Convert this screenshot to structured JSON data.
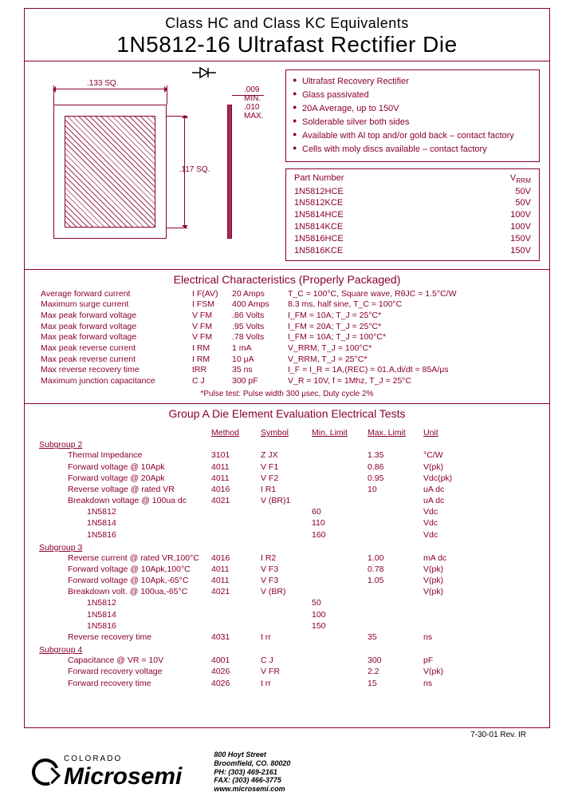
{
  "header": {
    "class_line": "Class HC and Class KC Equivalents",
    "title": "1N5812-16 Ultrafast Rectifier Die"
  },
  "dimensions": {
    "width": ".133 SQ.",
    "inner": ".117 SQ.",
    "thickness_min": ".009 MIN.",
    "thickness_max": ".010 MAX."
  },
  "features": [
    "Ultrafast Recovery Rectifier",
    "Glass passivated",
    "20A Average, up to 150V",
    "Solderable silver both sides",
    "Available with Al top and/or gold back – contact factory",
    "Cells with moly discs available – contact factory"
  ],
  "part_table": {
    "head_pn": "Part Number",
    "head_v": "V RRM",
    "rows": [
      {
        "pn": "1N5812HCE",
        "v": "50V"
      },
      {
        "pn": "1N5812KCE",
        "v": "50V"
      },
      {
        "pn": "1N5814HCE",
        "v": "100V"
      },
      {
        "pn": "1N5814KCE",
        "v": "100V"
      },
      {
        "pn": "1N5816HCE",
        "v": "150V"
      },
      {
        "pn": "1N5816KCE",
        "v": "150V"
      }
    ]
  },
  "elec_title": "Electrical Characteristics (Properly Packaged)",
  "elec_rows": [
    {
      "name": "Average forward current",
      "sym": "I F(AV)",
      "val": "20 Amps",
      "cond": "T_C = 100°C, Square wave, RθJC = 1.5°C/W"
    },
    {
      "name": "Maximum surge current",
      "sym": "I FSM",
      "val": "400 Amps",
      "cond": "8.3 ms, half sine, T_C = 100°C"
    },
    {
      "name": "Max peak forward voltage",
      "sym": "V FM",
      "val": ".86 Volts",
      "cond": "I_FM = 10A; T_J = 25°C*"
    },
    {
      "name": "Max peak forward voltage",
      "sym": "V FM",
      "val": ".95 Volts",
      "cond": "I_FM = 20A; T_J = 25°C*"
    },
    {
      "name": "Max peak forward voltage",
      "sym": "V FM",
      "val": ".78 Volts",
      "cond": "I_FM = 10A; T_J = 100°C*"
    },
    {
      "name": "Max peak reverse current",
      "sym": "I RM",
      "val": "1 mA",
      "cond": "V_RRM, T_J = 100°C*"
    },
    {
      "name": "Max peak reverse current",
      "sym": "I RM",
      "val": "10 μA",
      "cond": "V_RRM, T_J = 25°C*"
    },
    {
      "name": "Max reverse recovery time",
      "sym": "tRR",
      "val": "35 ns",
      "cond": "I_F = I_R = 1A,(REC) = 01.A,di/dt = 85A/μs"
    },
    {
      "name": "Maximum junction capacitance",
      "sym": "C J",
      "val": "300 pF",
      "cond": "V_R = 10V, f = 1Mhz, T_J = 25°C"
    }
  ],
  "elec_note": "*Pulse test: Pulse width 300 μsec, Duty cycle 2%",
  "group_title": "Group A Die Element Evaluation Electrical Tests",
  "ga_headers": {
    "method": "Method",
    "symbol": "Symbol",
    "min": "Min. Limit",
    "max": "Max. Limit",
    "unit": "Unit"
  },
  "sub2_label": "Subgroup 2",
  "sub2": [
    {
      "name": "Thermal Impedance",
      "method": "3101",
      "sym": "Z JX",
      "min": "",
      "max": "1.35",
      "unit": "°C/W"
    },
    {
      "name": "Forward voltage @ 10Apk",
      "method": "4011",
      "sym": "V F1",
      "min": "",
      "max": "0.86",
      "unit": "V(pk)"
    },
    {
      "name": "Forward voltage @ 20Apk",
      "method": "4011",
      "sym": "V F2",
      "min": "",
      "max": "0.95",
      "unit": "Vdc(pk)"
    },
    {
      "name": "Reverse voltage @ rated VR",
      "method": "4016",
      "sym": "I R1",
      "min": "",
      "max": "10",
      "unit": "uA dc"
    },
    {
      "name": "Breakdown voltage @ 100ua dc",
      "method": "4021",
      "sym": "V (BR)1",
      "min": "",
      "max": "",
      "unit": "uA dc"
    }
  ],
  "sub2_parts": [
    {
      "name": "1N5812",
      "min": "60",
      "unit": "Vdc"
    },
    {
      "name": "1N5814",
      "min": "110",
      "unit": "Vdc"
    },
    {
      "name": "1N5816",
      "min": "160",
      "unit": "Vdc"
    }
  ],
  "sub3_label": "Subgroup 3",
  "sub3": [
    {
      "name": "Reverse current @ rated VR,100°C",
      "method": "4016",
      "sym": "I R2",
      "min": "",
      "max": "1.00",
      "unit": "mA dc"
    },
    {
      "name": "Forward voltage @ 10Apk,100°C",
      "method": "4011",
      "sym": "V F3",
      "min": "",
      "max": "0.78",
      "unit": "V(pk)"
    },
    {
      "name": "Forward voltage @ 10Apk,-65°C",
      "method": "4011",
      "sym": "V F3",
      "min": "",
      "max": "1.05",
      "unit": "V(pk)"
    },
    {
      "name": "Breakdown volt. @ 100ua,-65°C",
      "method": "4021",
      "sym": "V (BR)",
      "min": "",
      "max": "",
      "unit": "V(pk)"
    }
  ],
  "sub3_parts": [
    {
      "name": "1N5812",
      "min": "50"
    },
    {
      "name": "1N5814",
      "min": "100"
    },
    {
      "name": "1N5816",
      "min": "150"
    }
  ],
  "sub3_tail": [
    {
      "name": "Reverse recovery time",
      "method": "4031",
      "sym": "t rr",
      "min": "",
      "max": "35",
      "unit": "ns"
    }
  ],
  "sub4_label": "Subgroup 4",
  "sub4": [
    {
      "name": "Capacitance @ VR = 10V",
      "method": "4001",
      "sym": "C J",
      "min": "",
      "max": "300",
      "unit": "pF"
    },
    {
      "name": "Forward recovery voltage",
      "method": "4026",
      "sym": "V FR",
      "min": "",
      "max": "2.2",
      "unit": "V(pk)"
    },
    {
      "name": "Forward recovery time",
      "method": "4026",
      "sym": "t rr",
      "min": "",
      "max": "15",
      "unit": "ns"
    }
  ],
  "revision": "7-30-01  Rev. IR",
  "footer": {
    "region": "COLORADO",
    "company": "Microsemi",
    "addr1": "800 Hoyt Street",
    "addr2": "Broomfield, CO. 80020",
    "ph": "PH: (303) 469-2161",
    "fax": "FAX: (303) 466-3775",
    "web": "www.microsemi.com"
  },
  "colors": {
    "accent": "#8b0030",
    "text": "#000000",
    "bg": "#ffffff"
  }
}
